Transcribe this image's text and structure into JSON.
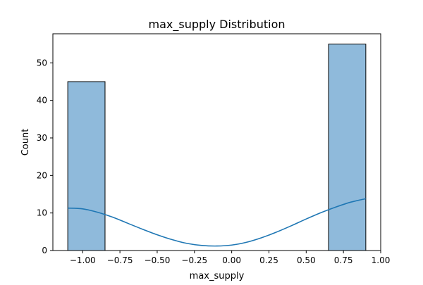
{
  "chart_data": {
    "type": "bar",
    "title": "max_supply Distribution",
    "xlabel": "max_supply",
    "ylabel": "Count",
    "xlim": [
      -1.2,
      1.0
    ],
    "ylim": [
      0,
      57.75
    ],
    "grid": false,
    "xticks": [
      -1.0,
      -0.75,
      -0.5,
      -0.25,
      0.0,
      0.25,
      0.5,
      0.75,
      1.0
    ],
    "xtick_labels": [
      "−1.00",
      "−0.75",
      "−0.50",
      "−0.25",
      "0.00",
      "0.25",
      "0.50",
      "0.75",
      "1.00"
    ],
    "yticks": [
      0,
      10,
      20,
      30,
      40,
      50
    ],
    "ytick_labels": [
      "0",
      "10",
      "20",
      "30",
      "40",
      "50"
    ],
    "bins": [
      {
        "x0": -1.1,
        "x1": -0.85,
        "count": 45
      },
      {
        "x0": 0.65,
        "x1": 0.9,
        "count": 55
      }
    ],
    "kde": {
      "x": [
        -1.1,
        -1.0,
        -0.9,
        -0.8,
        -0.7,
        -0.6,
        -0.5,
        -0.4,
        -0.3,
        -0.2,
        -0.1,
        0.0,
        0.1,
        0.2,
        0.3,
        0.4,
        0.5,
        0.6,
        0.7,
        0.8,
        0.9
      ],
      "y": [
        11.3,
        11.1,
        10.2,
        8.9,
        7.3,
        5.7,
        4.2,
        2.9,
        1.9,
        1.35,
        1.2,
        1.45,
        2.2,
        3.4,
        4.9,
        6.6,
        8.4,
        10.1,
        11.6,
        12.9,
        13.8
      ]
    },
    "colors": {
      "bar_fill": "#8fbadb",
      "bar_edge": "#000000",
      "kde_line": "#1f77b4"
    }
  }
}
